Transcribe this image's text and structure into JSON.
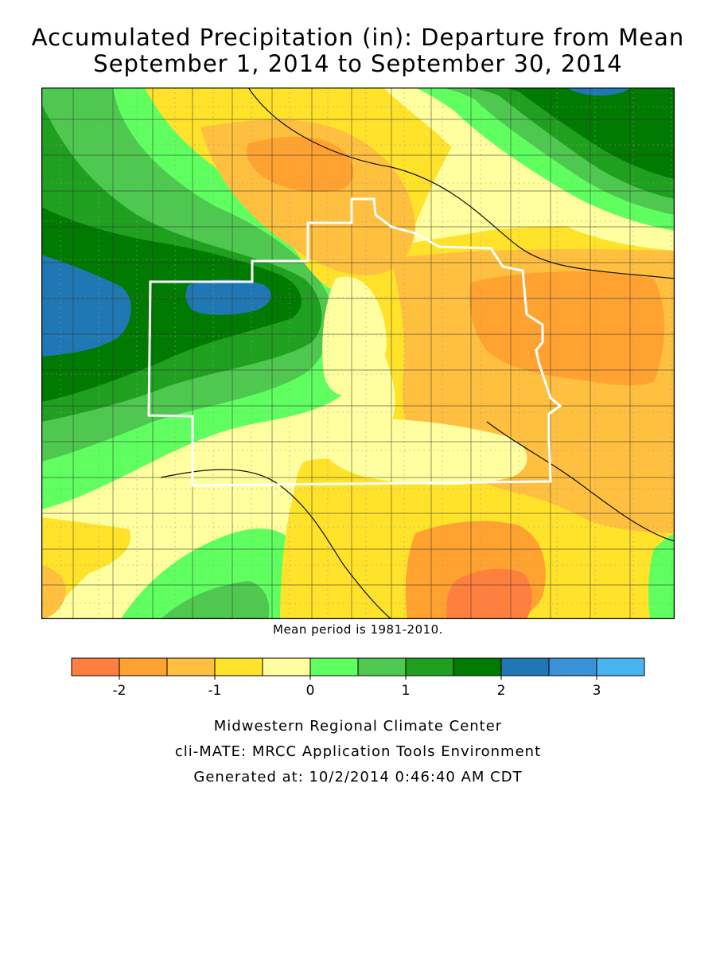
{
  "header": {
    "title_line1": "Accumulated Precipitation (in): Departure from Mean",
    "title_line2": "September 1, 2014 to September 30, 2014"
  },
  "map": {
    "note": "Mean period is 1981-2010.",
    "unit": "in"
  },
  "legend": {
    "bins": [
      {
        "from": -2.5,
        "to": -2.0,
        "color": "#ff7f3f"
      },
      {
        "from": -2.0,
        "to": -1.5,
        "color": "#ffa22f"
      },
      {
        "from": -1.5,
        "to": -1.0,
        "color": "#ffbf3f"
      },
      {
        "from": -1.0,
        "to": -0.5,
        "color": "#ffe22a"
      },
      {
        "from": -0.5,
        "to": 0.0,
        "color": "#ffff9f"
      },
      {
        "from": 0.0,
        "to": 0.5,
        "color": "#5fff5f"
      },
      {
        "from": 0.5,
        "to": 1.0,
        "color": "#4fc84f"
      },
      {
        "from": 1.0,
        "to": 1.5,
        "color": "#1fa01f"
      },
      {
        "from": 1.5,
        "to": 2.0,
        "color": "#007a00"
      },
      {
        "from": 2.0,
        "to": 2.5,
        "color": "#1f78b4"
      },
      {
        "from": 2.5,
        "to": 3.0,
        "color": "#3a92d8"
      },
      {
        "from": 3.0,
        "to": 3.5,
        "color": "#4ab4f0"
      }
    ],
    "tick_labels": [
      "-2",
      "-1",
      "0",
      "1",
      "2",
      "3"
    ]
  },
  "footer": {
    "line1": "Midwestern Regional Climate Center",
    "line2": "cli-MATE: MRCC Application Tools Environment",
    "line3": "Generated at: 10/2/2014 0:46:40 AM CDT"
  }
}
